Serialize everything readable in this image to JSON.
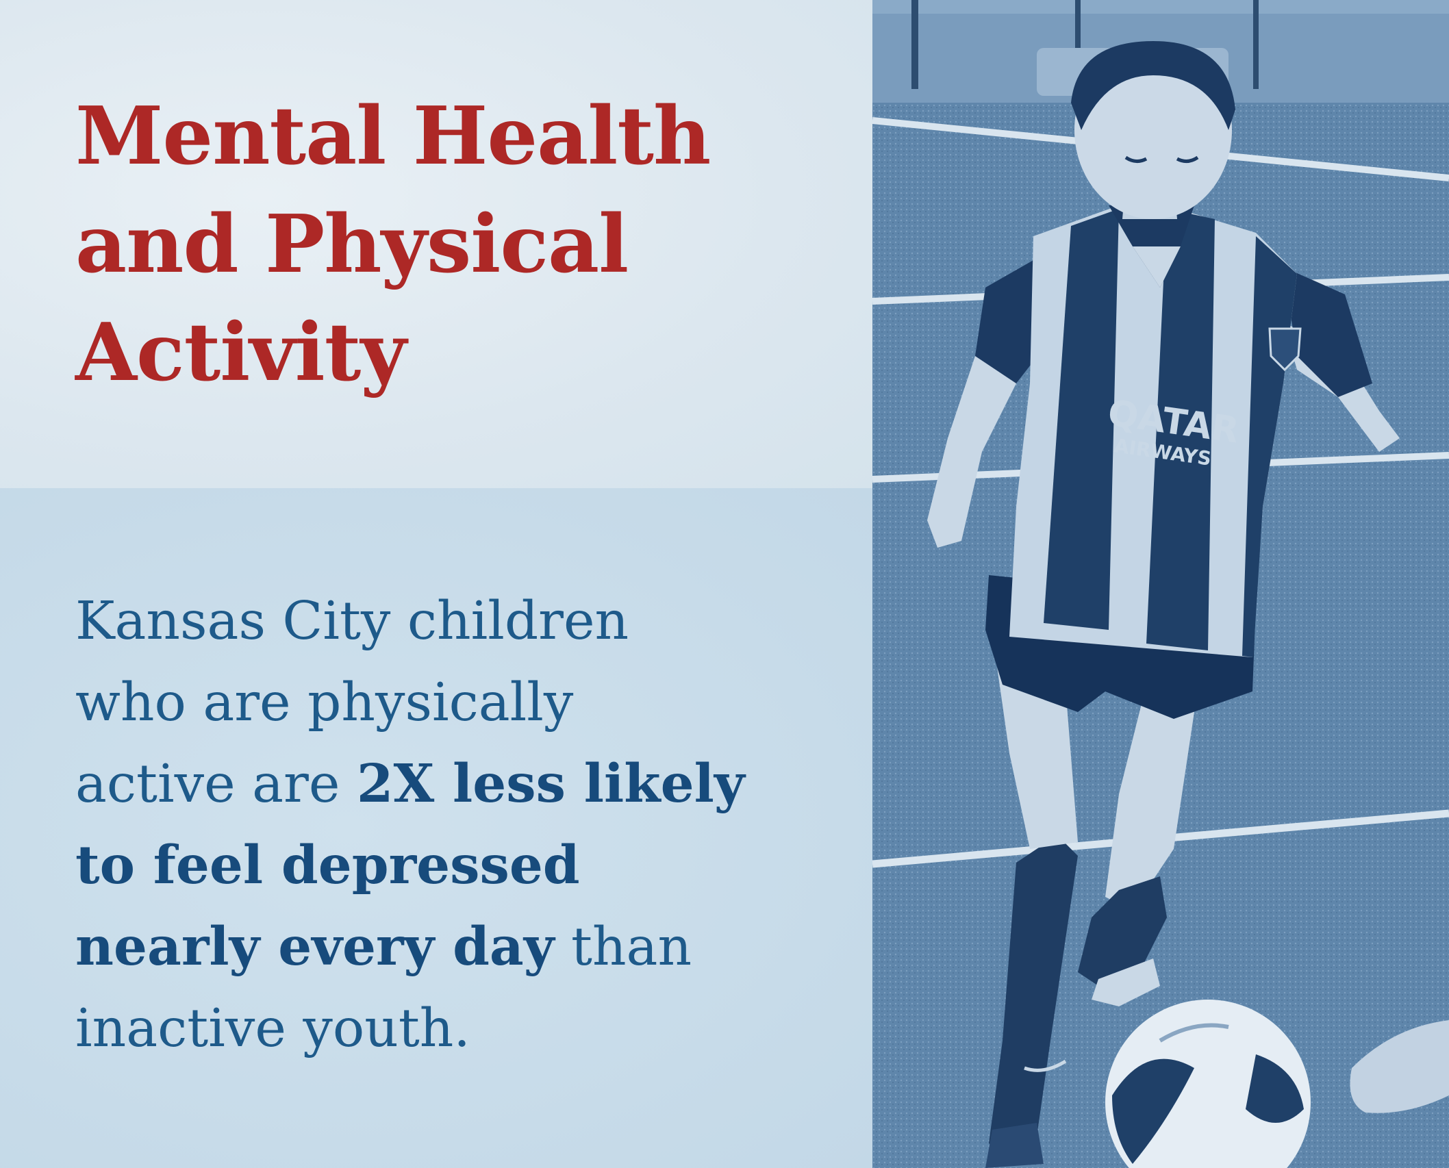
{
  "heading": {
    "line1": "Mental Health",
    "line2": "and Physical",
    "line3": "Activity"
  },
  "body": {
    "line1": "Kansas City children",
    "line2": "who are physically",
    "line3_regular": "active are ",
    "line3_bold": "2X less likely",
    "line4_bold": "to feel depressed",
    "line5_bold": "nearly every day",
    "line5_regular": " than",
    "line6": "inactive youth."
  },
  "photo": {
    "jersey_sponsor_line1": "QATAR",
    "jersey_sponsor_line2": "AIRWAYS"
  },
  "colors": {
    "heading": "#ad2826",
    "body": "#1e5a8a",
    "photo_tint": "#5f85a9"
  }
}
